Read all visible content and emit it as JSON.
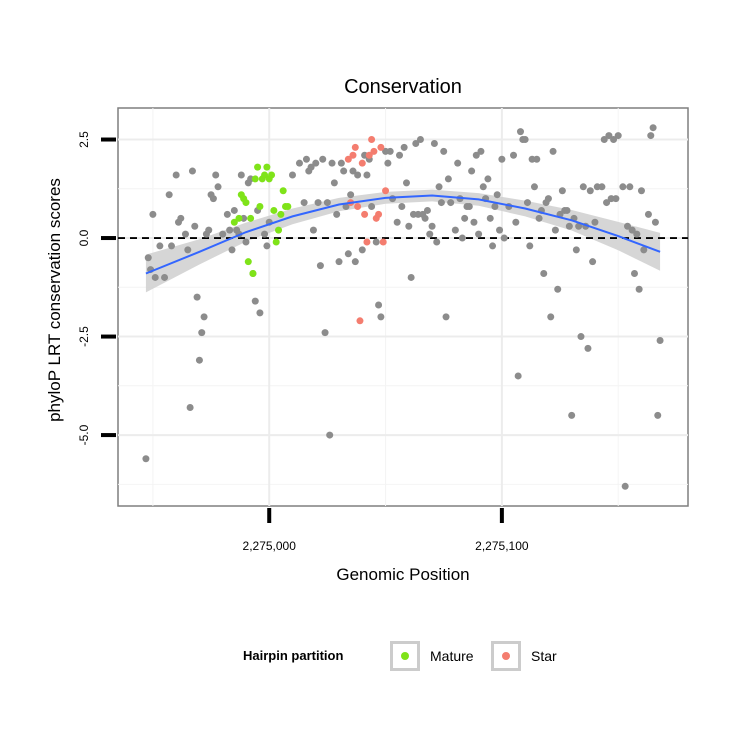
{
  "chart_data": {
    "type": "scatter",
    "title": "Conservation",
    "xlabel": "Genomic Position",
    "ylabel": "phyloP LRT conservation scores",
    "xlim": [
      2274935,
      2275180
    ],
    "ylim": [
      -6.8,
      3.3
    ],
    "x_ticks": [
      {
        "value": 2275000,
        "label": "2,275,000"
      },
      {
        "value": 2275100,
        "label": "2,275,100"
      }
    ],
    "y_ticks": [
      {
        "value": 2.5,
        "label": "2.5"
      },
      {
        "value": 0.0,
        "label": "0.0"
      },
      {
        "value": -2.5,
        "label": "-2.5"
      },
      {
        "value": -5.0,
        "label": "-5.0"
      }
    ],
    "reference_line": {
      "y": 0,
      "style": "dashed"
    },
    "legend": {
      "title": "Hairpin partition",
      "position": "bottom",
      "entries": [
        {
          "name": "Mature",
          "color": "#7fe319"
        },
        {
          "name": "Star",
          "color": "#f47d6f"
        }
      ]
    },
    "colors": {
      "Other": "#8c8c8c",
      "Mature": "#7fe319",
      "Star": "#f47d6f",
      "smooth": "#3366ff",
      "ribbon": "#cfcfcf"
    },
    "smooth": {
      "method": "loess",
      "x": [
        2274947,
        2274970,
        2274990,
        2275010,
        2275030,
        2275050,
        2275070,
        2275090,
        2275110,
        2275130,
        2275150,
        2275168
      ],
      "y": [
        -0.9,
        -0.35,
        0.15,
        0.55,
        0.85,
        1.02,
        1.08,
        0.98,
        0.75,
        0.45,
        0.05,
        -0.35
      ],
      "se": [
        0.48,
        0.32,
        0.24,
        0.2,
        0.17,
        0.15,
        0.15,
        0.16,
        0.2,
        0.26,
        0.36,
        0.48
      ]
    },
    "series": [
      {
        "name": "Other",
        "points": [
          [
            2274947,
            -5.6
          ],
          [
            2274948,
            -0.5
          ],
          [
            2274949,
            -0.8
          ],
          [
            2274950,
            0.6
          ],
          [
            2274951,
            -1.0
          ],
          [
            2274953,
            -0.2
          ],
          [
            2274955,
            -1.0
          ],
          [
            2274957,
            1.1
          ],
          [
            2274958,
            -0.2
          ],
          [
            2274960,
            1.6
          ],
          [
            2274961,
            0.4
          ],
          [
            2274962,
            0.5
          ],
          [
            2274964,
            0.1
          ],
          [
            2274965,
            -0.3
          ],
          [
            2274966,
            -4.3
          ],
          [
            2274967,
            1.7
          ],
          [
            2274968,
            0.3
          ],
          [
            2274969,
            -1.5
          ],
          [
            2274970,
            -3.1
          ],
          [
            2274971,
            -2.4
          ],
          [
            2274972,
            -2.0
          ],
          [
            2274973,
            0.1
          ],
          [
            2274974,
            0.2
          ],
          [
            2274975,
            1.1
          ],
          [
            2274976,
            1.0
          ],
          [
            2274977,
            1.6
          ],
          [
            2274978,
            1.3
          ],
          [
            2274980,
            0.1
          ],
          [
            2274982,
            0.6
          ],
          [
            2274983,
            0.2
          ],
          [
            2274984,
            -0.3
          ],
          [
            2274985,
            0.7
          ],
          [
            2274986,
            0.2
          ],
          [
            2274987,
            0.1
          ],
          [
            2274988,
            1.6
          ],
          [
            2274989,
            0.5
          ],
          [
            2274990,
            -0.1
          ],
          [
            2274991,
            1.4
          ],
          [
            2274992,
            1.5
          ],
          [
            2274993,
            -0.9
          ],
          [
            2274994,
            -1.6
          ],
          [
            2274995,
            0.7
          ],
          [
            2274996,
            -1.9
          ],
          [
            2274998,
            0.1
          ],
          [
            2274999,
            -0.2
          ],
          [
            2275000,
            0.4
          ],
          [
            2275010,
            1.6
          ],
          [
            2275013,
            1.9
          ],
          [
            2275015,
            0.9
          ],
          [
            2275016,
            2.0
          ],
          [
            2275017,
            1.7
          ],
          [
            2275018,
            1.8
          ],
          [
            2275019,
            0.2
          ],
          [
            2275020,
            1.9
          ],
          [
            2275021,
            0.9
          ],
          [
            2275022,
            -0.7
          ],
          [
            2275023,
            2.0
          ],
          [
            2275024,
            -2.4
          ],
          [
            2275025,
            0.9
          ],
          [
            2275026,
            -5.0
          ],
          [
            2275027,
            1.9
          ],
          [
            2275028,
            1.4
          ],
          [
            2275029,
            0.6
          ],
          [
            2275030,
            -0.6
          ],
          [
            2275031,
            1.9
          ],
          [
            2275032,
            1.7
          ],
          [
            2275033,
            0.8
          ],
          [
            2275034,
            -0.4
          ],
          [
            2275035,
            1.1
          ],
          [
            2275036,
            1.7
          ],
          [
            2275037,
            -0.6
          ],
          [
            2275038,
            1.6
          ],
          [
            2275040,
            -0.3
          ],
          [
            2275041,
            2.1
          ],
          [
            2275042,
            1.6
          ],
          [
            2275043,
            2.0
          ],
          [
            2275044,
            0.8
          ],
          [
            2275046,
            -0.1
          ],
          [
            2275047,
            -1.7
          ],
          [
            2275048,
            -2.0
          ],
          [
            2275050,
            2.2
          ],
          [
            2275051,
            1.9
          ],
          [
            2275052,
            2.2
          ],
          [
            2275053,
            1.0
          ],
          [
            2275055,
            0.4
          ],
          [
            2275056,
            2.1
          ],
          [
            2275057,
            0.8
          ],
          [
            2275058,
            2.3
          ],
          [
            2275059,
            1.4
          ],
          [
            2275060,
            0.3
          ],
          [
            2275061,
            -1.0
          ],
          [
            2275062,
            0.6
          ],
          [
            2275063,
            2.4
          ],
          [
            2275064,
            0.6
          ],
          [
            2275065,
            2.5
          ],
          [
            2275066,
            0.6
          ],
          [
            2275067,
            0.5
          ],
          [
            2275068,
            0.7
          ],
          [
            2275069,
            0.1
          ],
          [
            2275070,
            0.3
          ],
          [
            2275071,
            2.4
          ],
          [
            2275072,
            -0.1
          ],
          [
            2275073,
            1.3
          ],
          [
            2275074,
            0.9
          ],
          [
            2275075,
            2.2
          ],
          [
            2275076,
            -2.0
          ],
          [
            2275077,
            1.5
          ],
          [
            2275078,
            0.9
          ],
          [
            2275080,
            0.2
          ],
          [
            2275081,
            1.9
          ],
          [
            2275082,
            1.0
          ],
          [
            2275083,
            0.0
          ],
          [
            2275084,
            0.5
          ],
          [
            2275085,
            0.8
          ],
          [
            2275086,
            0.8
          ],
          [
            2275087,
            1.7
          ],
          [
            2275088,
            0.4
          ],
          [
            2275089,
            2.1
          ],
          [
            2275090,
            0.1
          ],
          [
            2275091,
            2.2
          ],
          [
            2275092,
            1.3
          ],
          [
            2275093,
            1.0
          ],
          [
            2275094,
            1.5
          ],
          [
            2275095,
            0.5
          ],
          [
            2275096,
            -0.2
          ],
          [
            2275097,
            0.8
          ],
          [
            2275098,
            1.1
          ],
          [
            2275099,
            0.2
          ],
          [
            2275100,
            2.0
          ],
          [
            2275101,
            0.0
          ],
          [
            2275103,
            0.8
          ],
          [
            2275105,
            2.1
          ],
          [
            2275106,
            0.4
          ],
          [
            2275107,
            -3.5
          ],
          [
            2275108,
            2.7
          ],
          [
            2275109,
            2.5
          ],
          [
            2275110,
            2.5
          ],
          [
            2275111,
            0.9
          ],
          [
            2275112,
            -0.2
          ],
          [
            2275113,
            2.0
          ],
          [
            2275114,
            1.3
          ],
          [
            2275115,
            2.0
          ],
          [
            2275116,
            0.5
          ],
          [
            2275117,
            0.7
          ],
          [
            2275118,
            -0.9
          ],
          [
            2275119,
            0.9
          ],
          [
            2275120,
            1.0
          ],
          [
            2275121,
            -2.0
          ],
          [
            2275122,
            2.2
          ],
          [
            2275123,
            0.2
          ],
          [
            2275124,
            -1.3
          ],
          [
            2275125,
            0.6
          ],
          [
            2275126,
            1.2
          ],
          [
            2275127,
            0.7
          ],
          [
            2275128,
            0.7
          ],
          [
            2275129,
            0.3
          ],
          [
            2275130,
            -4.5
          ],
          [
            2275131,
            0.5
          ],
          [
            2275132,
            -0.3
          ],
          [
            2275133,
            0.3
          ],
          [
            2275134,
            -2.5
          ],
          [
            2275135,
            1.3
          ],
          [
            2275136,
            0.3
          ],
          [
            2275137,
            -2.8
          ],
          [
            2275138,
            1.2
          ],
          [
            2275139,
            -0.6
          ],
          [
            2275140,
            0.4
          ],
          [
            2275141,
            1.3
          ],
          [
            2275143,
            1.3
          ],
          [
            2275144,
            2.5
          ],
          [
            2275145,
            0.9
          ],
          [
            2275146,
            2.6
          ],
          [
            2275147,
            1.0
          ],
          [
            2275148,
            2.5
          ],
          [
            2275149,
            1.0
          ],
          [
            2275150,
            2.6
          ],
          [
            2275152,
            1.3
          ],
          [
            2275153,
            -6.3
          ],
          [
            2275154,
            0.3
          ],
          [
            2275155,
            1.3
          ],
          [
            2275156,
            0.2
          ],
          [
            2275157,
            -0.9
          ],
          [
            2275158,
            0.1
          ],
          [
            2275159,
            -1.3
          ],
          [
            2275160,
            1.2
          ],
          [
            2275161,
            -0.3
          ],
          [
            2275163,
            0.6
          ],
          [
            2275164,
            2.6
          ],
          [
            2275165,
            2.8
          ],
          [
            2275166,
            0.4
          ],
          [
            2275167,
            -4.5
          ],
          [
            2275168,
            -2.6
          ]
        ]
      },
      {
        "name": "Mature",
        "points": [
          [
            2274985,
            0.4
          ],
          [
            2274987,
            0.5
          ],
          [
            2274988,
            1.1
          ],
          [
            2274989,
            1.0
          ],
          [
            2274990,
            0.9
          ],
          [
            2274991,
            -0.6
          ],
          [
            2274992,
            0.5
          ],
          [
            2274993,
            -0.9
          ],
          [
            2274994,
            1.5
          ],
          [
            2274995,
            1.8
          ],
          [
            2274996,
            0.8
          ],
          [
            2274997,
            1.5
          ],
          [
            2274998,
            1.6
          ],
          [
            2274999,
            1.8
          ],
          [
            2275000,
            1.5
          ],
          [
            2275001,
            1.6
          ],
          [
            2275002,
            0.7
          ],
          [
            2275003,
            -0.1
          ],
          [
            2275004,
            0.2
          ],
          [
            2275005,
            0.6
          ],
          [
            2275006,
            1.2
          ],
          [
            2275007,
            0.8
          ],
          [
            2275008,
            0.8
          ]
        ]
      },
      {
        "name": "Star",
        "points": [
          [
            2275034,
            2.0
          ],
          [
            2275035,
            0.9
          ],
          [
            2275036,
            2.1
          ],
          [
            2275037,
            2.3
          ],
          [
            2275038,
            0.8
          ],
          [
            2275039,
            -2.1
          ],
          [
            2275040,
            1.9
          ],
          [
            2275041,
            0.6
          ],
          [
            2275042,
            -0.1
          ],
          [
            2275043,
            2.1
          ],
          [
            2275044,
            2.5
          ],
          [
            2275045,
            2.2
          ],
          [
            2275046,
            0.5
          ],
          [
            2275047,
            0.6
          ],
          [
            2275048,
            2.3
          ],
          [
            2275049,
            -0.1
          ],
          [
            2275050,
            1.2
          ]
        ]
      }
    ]
  }
}
